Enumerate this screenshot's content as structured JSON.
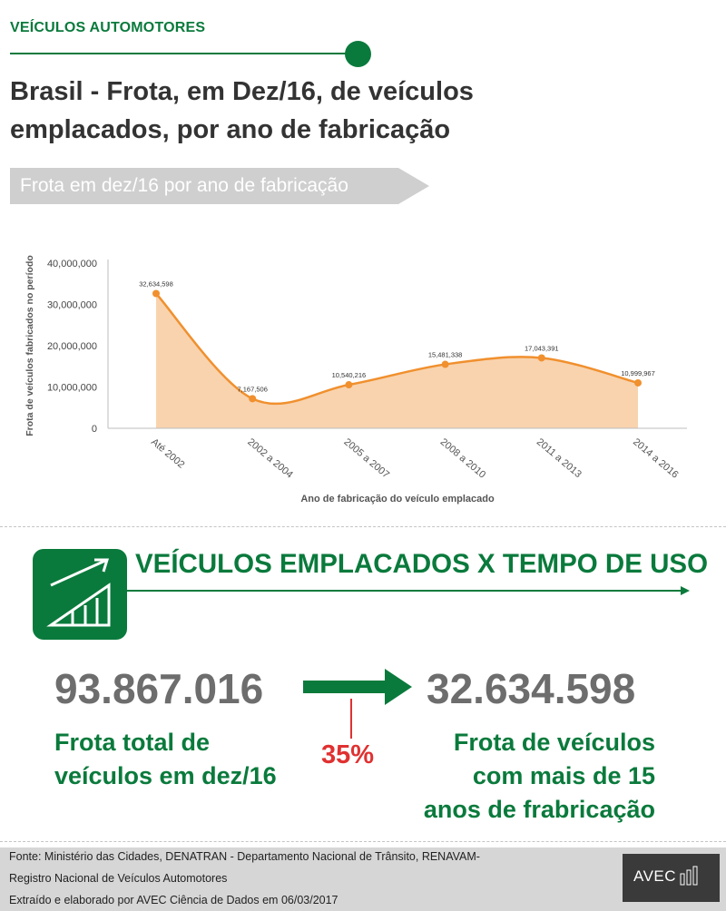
{
  "header": {
    "kicker": "VEÍCULOS AUTOMOTORES",
    "title": "Brasil - Frota, em Dez/16, de veículos emplacados, por ano de fabricação",
    "banner": "Frota em dez/16 por ano de fabricação"
  },
  "colors": {
    "brand_green": "#0a7a3c",
    "series_line": "#f0902e",
    "series_fill": "#f9d3ae",
    "highlight_red": "#e03131",
    "banner_gray": "#cfcfcf"
  },
  "chart_data": {
    "type": "area",
    "title": "",
    "xlabel": "Ano de fabricação do veículo emplacado",
    "ylabel": "Frota de veículos fabricados no período",
    "categories": [
      "Até 2002",
      "2002 a 2004",
      "2005 a 2007",
      "2008 a 2010",
      "2011 a 2013",
      "2014 a 2016"
    ],
    "values": [
      32634598,
      7167506,
      10540216,
      15481338,
      17043391,
      10999967
    ],
    "data_labels": [
      "32,634,598",
      "7,167,506",
      "10,540,216",
      "15,481,338",
      "17,043,391",
      "10,999,967"
    ],
    "yticks": [
      0,
      10000000,
      20000000,
      30000000,
      40000000
    ],
    "ytick_labels": [
      "0",
      "10,000,000",
      "20,000,000",
      "30,000,000",
      "40,000,000"
    ],
    "ylim": [
      0,
      40000000
    ],
    "smooth": true,
    "grid": false,
    "legend": "none"
  },
  "section": {
    "title": "VEÍCULOS EMPLACADOS X TEMPO DE USO",
    "icon": "growth-chart-icon"
  },
  "comparison": {
    "left_number": "93.867.016",
    "left_caption_line1": "Frota total de",
    "left_caption_line2": "veículos em dez/16",
    "right_number": "32.634.598",
    "right_caption_line1": "Frota de veículos",
    "right_caption_line2": "com mais de 15",
    "right_caption_line3": "anos de frabricação",
    "percent": "35%"
  },
  "footer": {
    "line1": "Fonte: Ministério das Cidades, DENATRAN - Departamento Nacional de Trânsito, RENAVAM-",
    "line2": "Registro Nacional de Veículos Automotores",
    "line3": "Extraído e elaborado por AVEC Ciência de Dados em 06/03/2017",
    "logo_text": "AVEC"
  }
}
